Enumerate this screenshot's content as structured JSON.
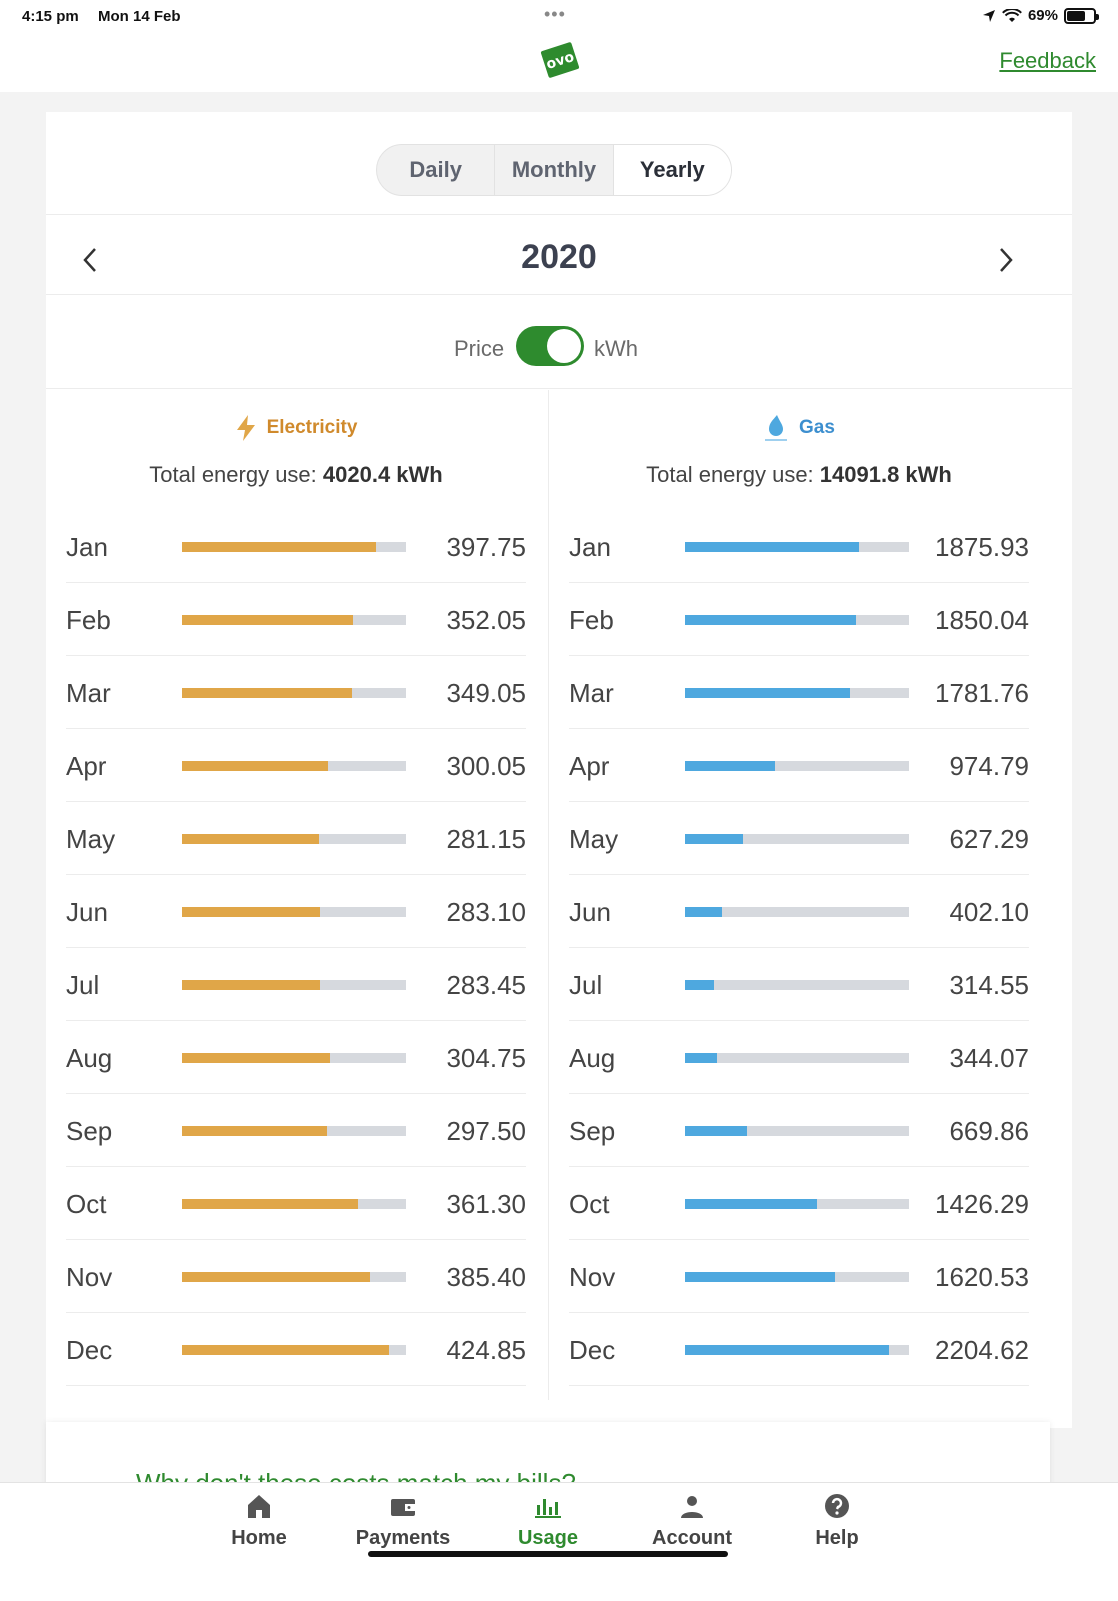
{
  "status_bar": {
    "time": "4:15 pm",
    "date": "Mon 14 Feb",
    "dots": "•••",
    "battery": "69%",
    "battery_level": 0.69
  },
  "header": {
    "logo_text": "ovo",
    "feedback_label": "Feedback"
  },
  "view_tabs": [
    {
      "label": "Daily",
      "active": false
    },
    {
      "label": "Monthly",
      "active": false
    },
    {
      "label": "Yearly",
      "active": true
    }
  ],
  "period": {
    "year": "2020"
  },
  "unit_toggle": {
    "left_label": "Price",
    "right_label": "kWh",
    "selected": "kWh"
  },
  "electricity": {
    "title": "Electricity",
    "total_label": "Total energy use:",
    "total_value": "4020.4 kWh",
    "color": "#e0a648",
    "title_color": "#d08a2c",
    "max": 460,
    "months": [
      {
        "month": "Jan",
        "value": "397.75"
      },
      {
        "month": "Feb",
        "value": "352.05"
      },
      {
        "month": "Mar",
        "value": "349.05"
      },
      {
        "month": "Apr",
        "value": "300.05"
      },
      {
        "month": "May",
        "value": "281.15"
      },
      {
        "month": "Jun",
        "value": "283.10"
      },
      {
        "month": "Jul",
        "value": "283.45"
      },
      {
        "month": "Aug",
        "value": "304.75"
      },
      {
        "month": "Sep",
        "value": "297.50"
      },
      {
        "month": "Oct",
        "value": "361.30"
      },
      {
        "month": "Nov",
        "value": "385.40"
      },
      {
        "month": "Dec",
        "value": "424.85"
      }
    ]
  },
  "gas": {
    "title": "Gas",
    "total_label": "Total energy use:",
    "total_value": "14091.8 kWh",
    "color": "#4ea8df",
    "title_color": "#3d8fcf",
    "max": 2420,
    "months": [
      {
        "month": "Jan",
        "value": "1875.93"
      },
      {
        "month": "Feb",
        "value": "1850.04"
      },
      {
        "month": "Mar",
        "value": "1781.76"
      },
      {
        "month": "Apr",
        "value": "974.79"
      },
      {
        "month": "May",
        "value": "627.29"
      },
      {
        "month": "Jun",
        "value": "402.10"
      },
      {
        "month": "Jul",
        "value": "314.55"
      },
      {
        "month": "Aug",
        "value": "344.07"
      },
      {
        "month": "Sep",
        "value": "669.86"
      },
      {
        "month": "Oct",
        "value": "1426.29"
      },
      {
        "month": "Nov",
        "value": "1620.53"
      },
      {
        "month": "Dec",
        "value": "2204.62"
      }
    ]
  },
  "faq": {
    "link": "Why don't these costs match my bills?"
  },
  "tab_bar": [
    {
      "label": "Home",
      "icon": "home-icon",
      "active": false
    },
    {
      "label": "Payments",
      "icon": "wallet-icon",
      "active": false
    },
    {
      "label": "Usage",
      "icon": "chart-icon",
      "active": true
    },
    {
      "label": "Account",
      "icon": "user-icon",
      "active": false
    },
    {
      "label": "Help",
      "icon": "help-icon",
      "active": false
    }
  ]
}
